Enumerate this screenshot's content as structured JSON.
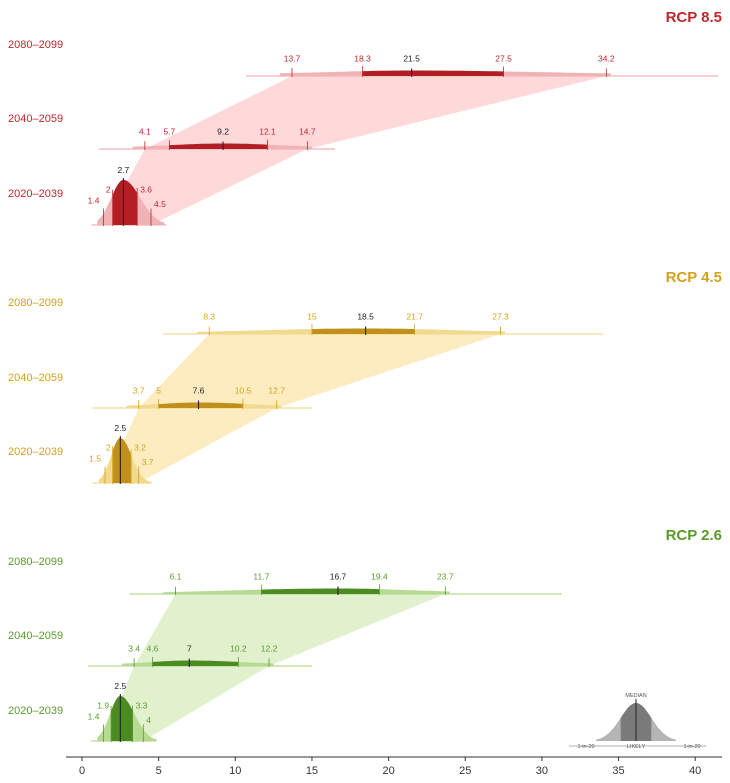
{
  "chart_data": {
    "type": "area",
    "x_ticks": [
      0,
      5,
      10,
      15,
      20,
      25,
      30,
      35,
      40
    ],
    "xlim": [
      0,
      42
    ],
    "scenarios": [
      {
        "name": "RCP 8.5",
        "color": "#c1272d",
        "light": "#f0b3b5",
        "dark": "#b11f25",
        "band": "#ffd1d3",
        "periods": [
          {
            "label": "2020–2039",
            "p5": 1.4,
            "p17": 2,
            "median": 2.7,
            "p83": 3.6,
            "p95": 4.5,
            "range_max": 5.5,
            "shape": "tall"
          },
          {
            "label": "2040–2059",
            "p5": 4.1,
            "p17": 5.7,
            "median": 9.2,
            "p83": 12.1,
            "p95": 14.7,
            "range_max": 16.5,
            "shape": "flat"
          },
          {
            "label": "2080–2099",
            "p5": 13.7,
            "p17": 18.3,
            "median": 21.5,
            "p83": 27.5,
            "p95": 34.2,
            "range_max": 41.5,
            "shape": "flat"
          }
        ]
      },
      {
        "name": "RCP 4.5",
        "color": "#d4a21b",
        "light": "#f1d990",
        "dark": "#c0901a",
        "band": "#fde9b5",
        "periods": [
          {
            "label": "2020–2039",
            "p5": 1.5,
            "p17": 2,
            "median": 2.5,
            "p83": 3.2,
            "p95": 3.7,
            "range_max": 4.5,
            "shape": "tall"
          },
          {
            "label": "2040–2059",
            "p5": 3.7,
            "p17": 5,
            "median": 7.6,
            "p83": 10.5,
            "p95": 12.7,
            "range_max": 15,
            "shape": "flat"
          },
          {
            "label": "2080–2099",
            "p5": 8.3,
            "p17": 15,
            "median": 18.5,
            "p83": 21.7,
            "p95": 27.3,
            "range_max": 34,
            "shape": "flat"
          }
        ]
      },
      {
        "name": "RCP 2.6",
        "color": "#5a9a2a",
        "light": "#b6da92",
        "dark": "#4c8a22",
        "band": "#dcefc6",
        "periods": [
          {
            "label": "2020–2039",
            "p5": 1.4,
            "p17": 1.9,
            "median": 2.5,
            "p83": 3.3,
            "p95": 4,
            "range_max": 4.8,
            "shape": "tall"
          },
          {
            "label": "2040–2059",
            "p5": 3.4,
            "p17": 4.6,
            "median": 7,
            "p83": 10.2,
            "p95": 12.2,
            "range_max": 15,
            "shape": "flat"
          },
          {
            "label": "2080–2099",
            "p5": 6.1,
            "p17": 11.7,
            "median": 16.7,
            "p83": 19.4,
            "p95": 23.7,
            "range_max": 31.3,
            "shape": "flat"
          }
        ]
      }
    ],
    "legend": {
      "median_label": "MEDIAN",
      "likely_label": "LIKELY",
      "tail_label": "1-in-20",
      "placement": "bottom-right"
    }
  }
}
